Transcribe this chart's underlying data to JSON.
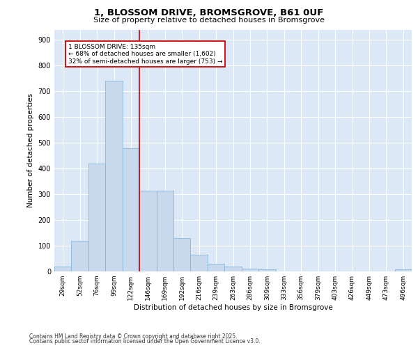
{
  "title1": "1, BLOSSOM DRIVE, BROMSGROVE, B61 0UF",
  "title2": "Size of property relative to detached houses in Bromsgrove",
  "xlabel": "Distribution of detached houses by size in Bromsgrove",
  "ylabel": "Number of detached properties",
  "categories": [
    "29sqm",
    "52sqm",
    "76sqm",
    "99sqm",
    "122sqm",
    "146sqm",
    "169sqm",
    "192sqm",
    "216sqm",
    "239sqm",
    "263sqm",
    "286sqm",
    "309sqm",
    "333sqm",
    "356sqm",
    "379sqm",
    "403sqm",
    "426sqm",
    "449sqm",
    "473sqm",
    "496sqm"
  ],
  "values": [
    20,
    120,
    420,
    740,
    480,
    315,
    315,
    130,
    65,
    30,
    20,
    10,
    7,
    0,
    0,
    0,
    0,
    0,
    0,
    0,
    7
  ],
  "bar_color": "#c8d9ee",
  "bar_edgecolor": "#7ab0d8",
  "background_color": "#dce8f5",
  "grid_color": "#ffffff",
  "red_line_x": 4.5,
  "annotation_text": "1 BLOSSOM DRIVE: 135sqm\n← 68% of detached houses are smaller (1,602)\n32% of semi-detached houses are larger (753) →",
  "ylim": [
    0,
    940
  ],
  "yticks": [
    0,
    100,
    200,
    300,
    400,
    500,
    600,
    700,
    800,
    900
  ],
  "footer1": "Contains HM Land Registry data © Crown copyright and database right 2025.",
  "footer2": "Contains public sector information licensed under the Open Government Licence v3.0."
}
